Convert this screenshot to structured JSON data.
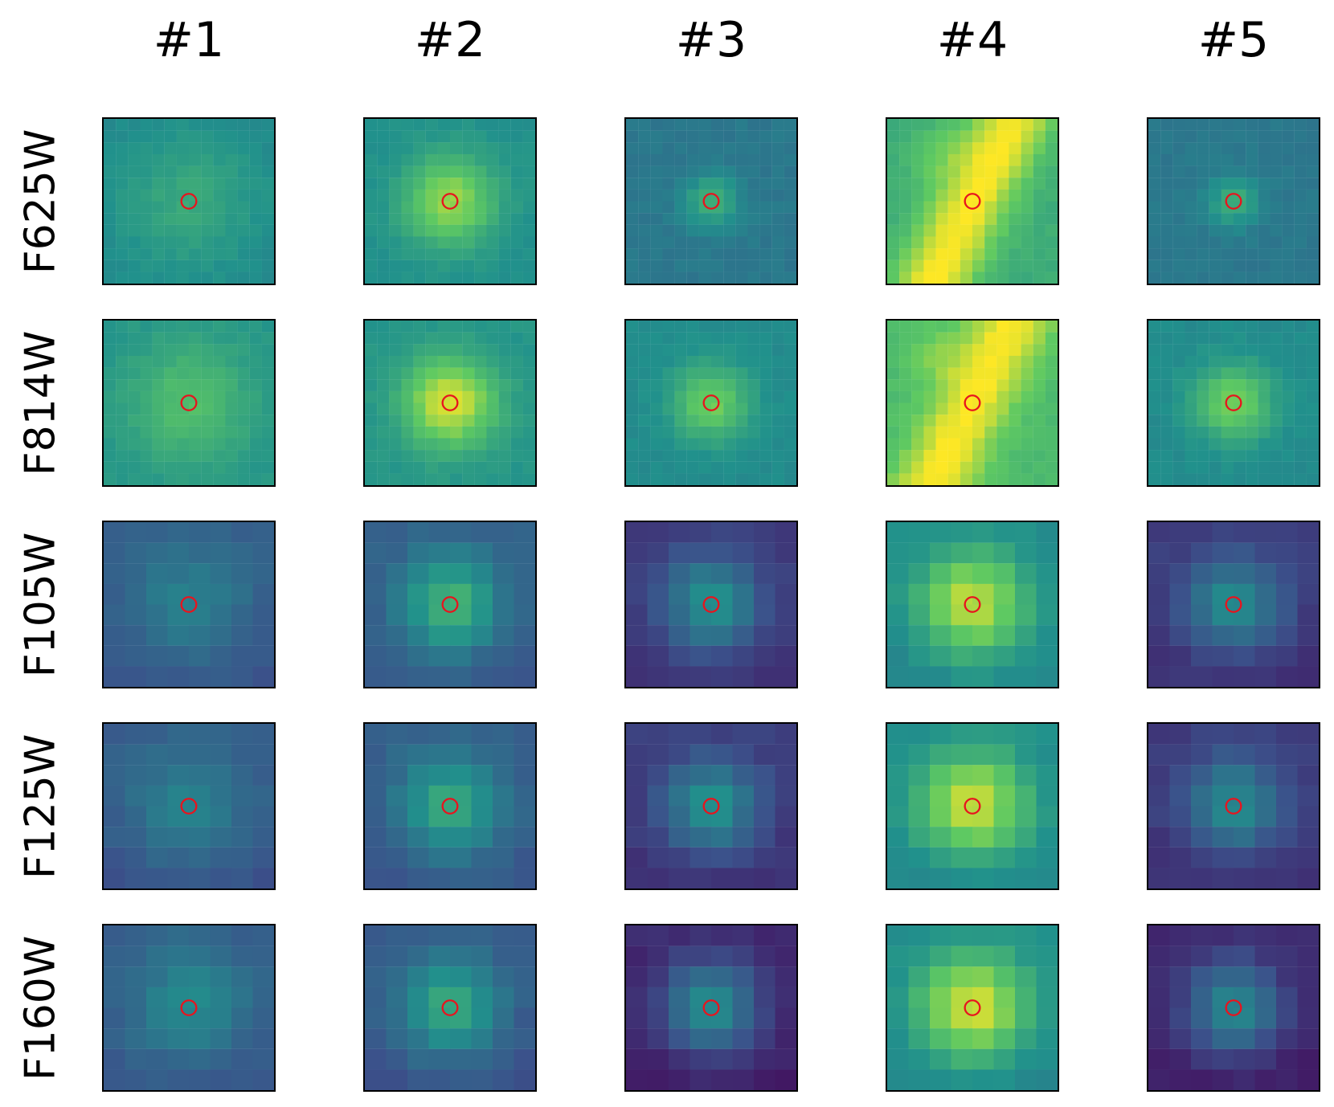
{
  "columns": [
    "#1",
    "#2",
    "#3",
    "#4",
    "#5"
  ],
  "rows": [
    "F625W",
    "F814W",
    "F105W",
    "F125W",
    "F160W"
  ],
  "colors": {
    "marker": "#e8141e",
    "frame": "#000000",
    "colormap": [
      "#440154",
      "#3b528b",
      "#21918c",
      "#5ec962",
      "#fde725"
    ]
  },
  "panels": [
    [
      {
        "type": "compact",
        "bg": 0.47,
        "peak": 0.6,
        "spread": 4.0,
        "grid": 14
      },
      {
        "type": "compact",
        "bg": 0.5,
        "peak": 0.85,
        "spread": 2.6,
        "grid": 14
      },
      {
        "type": "compact",
        "bg": 0.4,
        "peak": 0.62,
        "spread": 1.6,
        "grid": 14
      },
      {
        "type": "streak",
        "bg": 0.62,
        "peak": 1.0,
        "spread": 2.2,
        "grid": 14
      },
      {
        "type": "compact",
        "bg": 0.4,
        "peak": 0.62,
        "spread": 1.5,
        "grid": 14
      }
    ],
    [
      {
        "type": "compact",
        "bg": 0.52,
        "peak": 0.7,
        "spread": 3.5,
        "grid": 14
      },
      {
        "type": "compact",
        "bg": 0.52,
        "peak": 0.95,
        "spread": 2.6,
        "grid": 14
      },
      {
        "type": "compact",
        "bg": 0.48,
        "peak": 0.78,
        "spread": 2.2,
        "grid": 14
      },
      {
        "type": "streak",
        "bg": 0.68,
        "peak": 1.0,
        "spread": 2.2,
        "grid": 14
      },
      {
        "type": "compact",
        "bg": 0.48,
        "peak": 0.8,
        "spread": 2.2,
        "grid": 14
      }
    ],
    [
      {
        "type": "compact",
        "bg": 0.28,
        "peak": 0.45,
        "spread": 2.2,
        "grid": 8
      },
      {
        "type": "compact",
        "bg": 0.3,
        "peak": 0.66,
        "spread": 1.7,
        "grid": 8
      },
      {
        "type": "compact",
        "bg": 0.18,
        "peak": 0.52,
        "spread": 1.6,
        "grid": 8
      },
      {
        "type": "compact",
        "bg": 0.48,
        "peak": 0.92,
        "spread": 1.8,
        "grid": 8
      },
      {
        "type": "compact",
        "bg": 0.18,
        "peak": 0.5,
        "spread": 1.6,
        "grid": 8
      }
    ],
    [
      {
        "type": "compact",
        "bg": 0.28,
        "peak": 0.45,
        "spread": 2.2,
        "grid": 8
      },
      {
        "type": "compact",
        "bg": 0.3,
        "peak": 0.62,
        "spread": 1.7,
        "grid": 8
      },
      {
        "type": "compact",
        "bg": 0.18,
        "peak": 0.52,
        "spread": 1.6,
        "grid": 8
      },
      {
        "type": "compact",
        "bg": 0.48,
        "peak": 0.94,
        "spread": 1.8,
        "grid": 8
      },
      {
        "type": "compact",
        "bg": 0.18,
        "peak": 0.5,
        "spread": 1.6,
        "grid": 8
      }
    ],
    [
      {
        "type": "compact",
        "bg": 0.28,
        "peak": 0.48,
        "spread": 2.2,
        "grid": 8
      },
      {
        "type": "compact",
        "bg": 0.28,
        "peak": 0.62,
        "spread": 1.7,
        "grid": 8
      },
      {
        "type": "compact",
        "bg": 0.12,
        "peak": 0.5,
        "spread": 1.6,
        "grid": 8
      },
      {
        "type": "compact",
        "bg": 0.48,
        "peak": 0.96,
        "spread": 1.8,
        "grid": 8
      },
      {
        "type": "compact",
        "bg": 0.12,
        "peak": 0.48,
        "spread": 1.6,
        "grid": 8
      }
    ]
  ]
}
